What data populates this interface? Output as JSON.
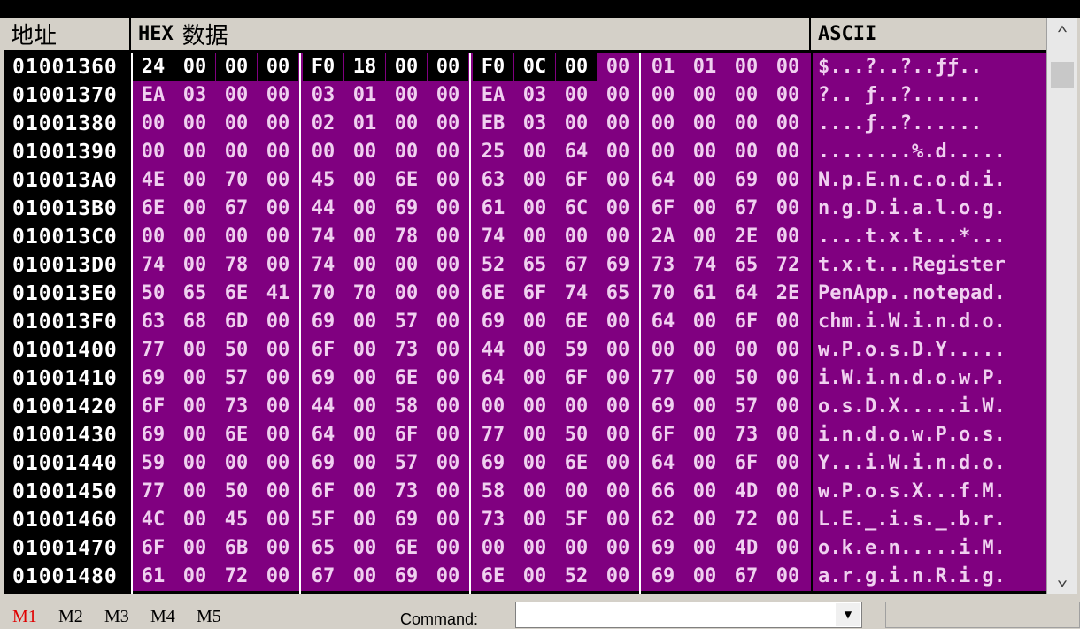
{
  "headers": {
    "address": "地址",
    "hex": "HEX",
    "hex_suffix": "数据",
    "ascii": "ASCII"
  },
  "rows": [
    {
      "addr": "01001360",
      "bytes": [
        "24",
        "00",
        "00",
        "00",
        "F0",
        "18",
        "00",
        "00",
        "F0",
        "0C",
        "00",
        "00",
        "01",
        "01",
        "00",
        "00"
      ],
      "ascii": "$...?..?..ƒƒ.."
    },
    {
      "addr": "01001370",
      "bytes": [
        "EA",
        "03",
        "00",
        "00",
        "03",
        "01",
        "00",
        "00",
        "EA",
        "03",
        "00",
        "00",
        "00",
        "00",
        "00",
        "00"
      ],
      "ascii": "?.. ƒ..?......"
    },
    {
      "addr": "01001380",
      "bytes": [
        "00",
        "00",
        "00",
        "00",
        "02",
        "01",
        "00",
        "00",
        "EB",
        "03",
        "00",
        "00",
        "00",
        "00",
        "00",
        "00"
      ],
      "ascii": "....ƒ..?......"
    },
    {
      "addr": "01001390",
      "bytes": [
        "00",
        "00",
        "00",
        "00",
        "00",
        "00",
        "00",
        "00",
        "25",
        "00",
        "64",
        "00",
        "00",
        "00",
        "00",
        "00"
      ],
      "ascii": "........%.d....."
    },
    {
      "addr": "010013A0",
      "bytes": [
        "4E",
        "00",
        "70",
        "00",
        "45",
        "00",
        "6E",
        "00",
        "63",
        "00",
        "6F",
        "00",
        "64",
        "00",
        "69",
        "00"
      ],
      "ascii": "N.p.E.n.c.o.d.i."
    },
    {
      "addr": "010013B0",
      "bytes": [
        "6E",
        "00",
        "67",
        "00",
        "44",
        "00",
        "69",
        "00",
        "61",
        "00",
        "6C",
        "00",
        "6F",
        "00",
        "67",
        "00"
      ],
      "ascii": "n.g.D.i.a.l.o.g."
    },
    {
      "addr": "010013C0",
      "bytes": [
        "00",
        "00",
        "00",
        "00",
        "74",
        "00",
        "78",
        "00",
        "74",
        "00",
        "00",
        "00",
        "2A",
        "00",
        "2E",
        "00"
      ],
      "ascii": "....t.x.t...*..."
    },
    {
      "addr": "010013D0",
      "bytes": [
        "74",
        "00",
        "78",
        "00",
        "74",
        "00",
        "00",
        "00",
        "52",
        "65",
        "67",
        "69",
        "73",
        "74",
        "65",
        "72"
      ],
      "ascii": "t.x.t...Register"
    },
    {
      "addr": "010013E0",
      "bytes": [
        "50",
        "65",
        "6E",
        "41",
        "70",
        "70",
        "00",
        "00",
        "6E",
        "6F",
        "74",
        "65",
        "70",
        "61",
        "64",
        "2E"
      ],
      "ascii": "PenApp..notepad."
    },
    {
      "addr": "010013F0",
      "bytes": [
        "63",
        "68",
        "6D",
        "00",
        "69",
        "00",
        "57",
        "00",
        "69",
        "00",
        "6E",
        "00",
        "64",
        "00",
        "6F",
        "00"
      ],
      "ascii": "chm.i.W.i.n.d.o."
    },
    {
      "addr": "01001400",
      "bytes": [
        "77",
        "00",
        "50",
        "00",
        "6F",
        "00",
        "73",
        "00",
        "44",
        "00",
        "59",
        "00",
        "00",
        "00",
        "00",
        "00"
      ],
      "ascii": "w.P.o.s.D.Y....."
    },
    {
      "addr": "01001410",
      "bytes": [
        "69",
        "00",
        "57",
        "00",
        "69",
        "00",
        "6E",
        "00",
        "64",
        "00",
        "6F",
        "00",
        "77",
        "00",
        "50",
        "00"
      ],
      "ascii": "i.W.i.n.d.o.w.P."
    },
    {
      "addr": "01001420",
      "bytes": [
        "6F",
        "00",
        "73",
        "00",
        "44",
        "00",
        "58",
        "00",
        "00",
        "00",
        "00",
        "00",
        "69",
        "00",
        "57",
        "00"
      ],
      "ascii": "o.s.D.X.....i.W."
    },
    {
      "addr": "01001430",
      "bytes": [
        "69",
        "00",
        "6E",
        "00",
        "64",
        "00",
        "6F",
        "00",
        "77",
        "00",
        "50",
        "00",
        "6F",
        "00",
        "73",
        "00"
      ],
      "ascii": "i.n.d.o.w.P.o.s."
    },
    {
      "addr": "01001440",
      "bytes": [
        "59",
        "00",
        "00",
        "00",
        "69",
        "00",
        "57",
        "00",
        "69",
        "00",
        "6E",
        "00",
        "64",
        "00",
        "6F",
        "00"
      ],
      "ascii": "Y...i.W.i.n.d.o."
    },
    {
      "addr": "01001450",
      "bytes": [
        "77",
        "00",
        "50",
        "00",
        "6F",
        "00",
        "73",
        "00",
        "58",
        "00",
        "00",
        "00",
        "66",
        "00",
        "4D",
        "00"
      ],
      "ascii": "w.P.o.s.X...f.M."
    },
    {
      "addr": "01001460",
      "bytes": [
        "4C",
        "00",
        "45",
        "00",
        "5F",
        "00",
        "69",
        "00",
        "73",
        "00",
        "5F",
        "00",
        "62",
        "00",
        "72",
        "00"
      ],
      "ascii": "L.E._.i.s._.b.r."
    },
    {
      "addr": "01001470",
      "bytes": [
        "6F",
        "00",
        "6B",
        "00",
        "65",
        "00",
        "6E",
        "00",
        "00",
        "00",
        "00",
        "00",
        "69",
        "00",
        "4D",
        "00"
      ],
      "ascii": "o.k.e.n.....i.M."
    },
    {
      "addr": "01001480",
      "bytes": [
        "61",
        "00",
        "72",
        "00",
        "67",
        "00",
        "69",
        "00",
        "6E",
        "00",
        "52",
        "00",
        "69",
        "00",
        "67",
        "00"
      ],
      "ascii": "a.r.g.i.n.R.i.g."
    }
  ],
  "selected_bytes": 11,
  "memory_tabs": [
    "M1",
    "M2",
    "M3",
    "M4",
    "M5"
  ],
  "active_tab": "M1",
  "command_label": "Command:",
  "command_value": "",
  "scroll_up_icon": "chevron-up-icon",
  "scroll_down_icon": "chevron-down-icon",
  "colors": {
    "dump_bg": "#800080",
    "addr_bg": "#000000",
    "selection_bg": "#000000",
    "active_tab": "#e00000"
  }
}
